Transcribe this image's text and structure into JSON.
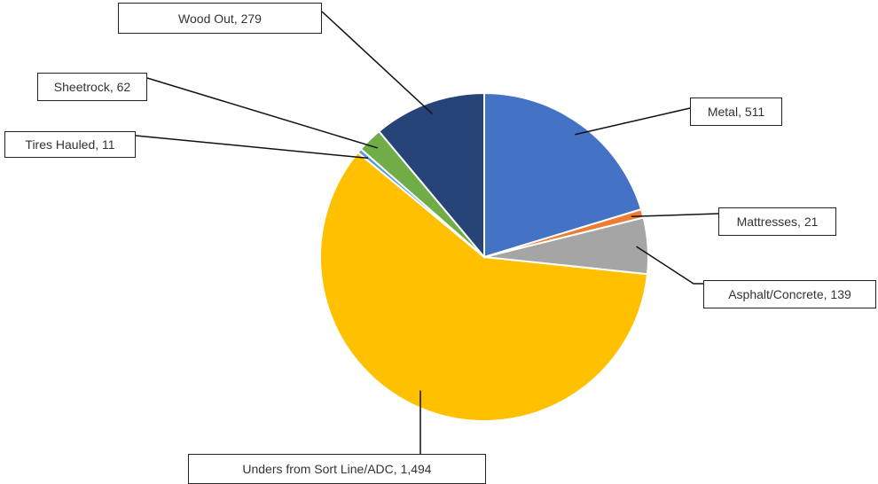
{
  "chart_data": {
    "type": "pie",
    "categories": [
      "Metal",
      "Mattresses",
      "Asphalt/Concrete",
      "Unders from Sort Line/ADC",
      "Tires Hauled",
      "Sheetrock",
      "Wood Out"
    ],
    "values": [
      511,
      21,
      139,
      1494,
      11,
      62,
      279
    ],
    "value_labels": [
      "511",
      "21",
      "139",
      "1,494",
      "11",
      "62",
      "279"
    ],
    "colors": [
      "#4472c4",
      "#ed7d31",
      "#a5a5a5",
      "#ffc000",
      "#5b9bd5",
      "#70ad47",
      "#264478"
    ]
  }
}
